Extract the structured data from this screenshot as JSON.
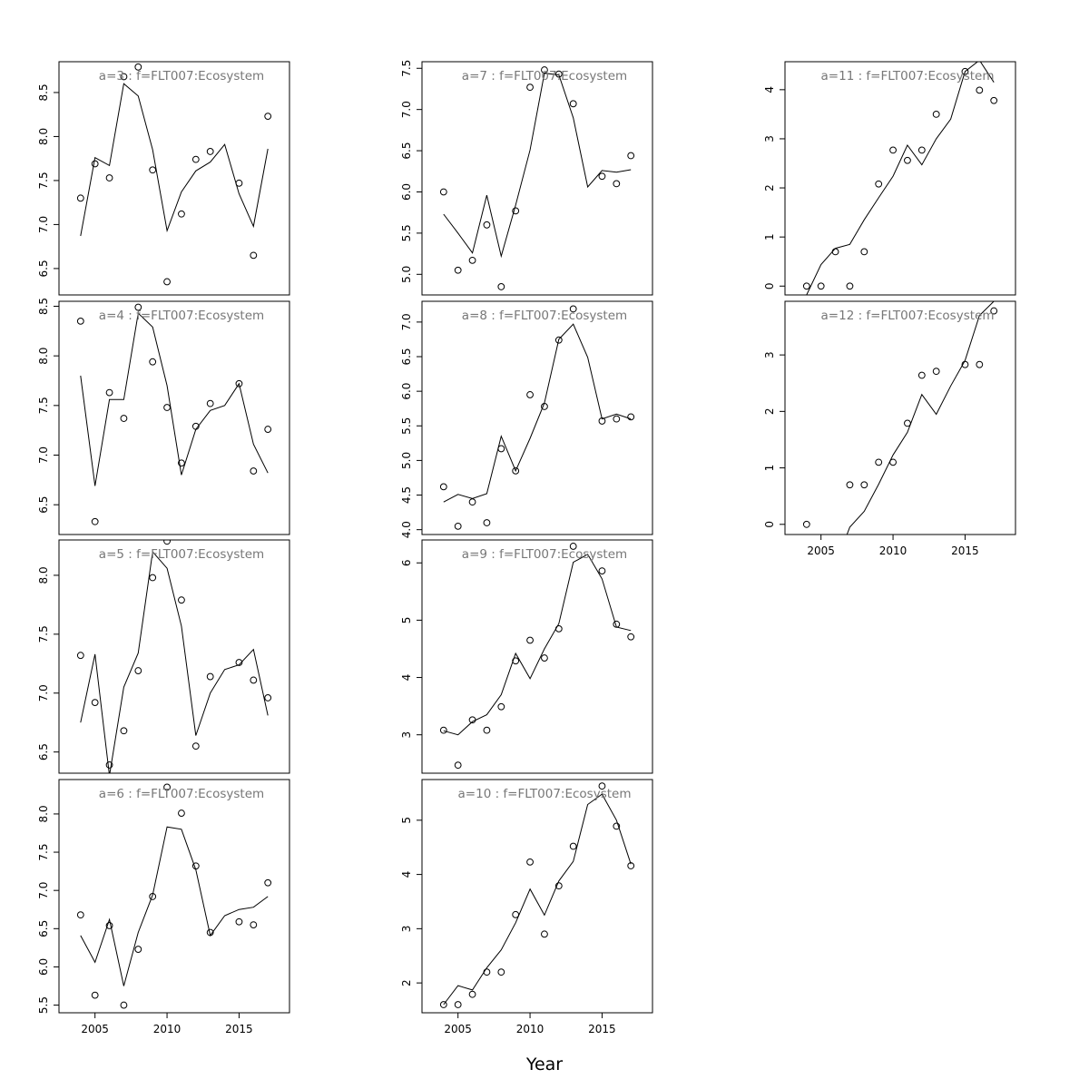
{
  "figure": {
    "xlabel": "Year",
    "x_ticks": [
      2005,
      2010,
      2015
    ]
  },
  "chart_data": [
    {
      "type": "scatter",
      "title": "a=3 : f=FLT007:Ecosystem",
      "xlim": [
        2002.5,
        2018.5
      ],
      "ylim": [
        6.2,
        8.85
      ],
      "yticks": [
        6.5,
        7.0,
        7.5,
        8.0,
        8.5
      ],
      "ytick_labels": [
        "6.5",
        "7.0",
        "7.5",
        "8.0",
        "8.5"
      ],
      "show_xaxis": false,
      "series": [
        {
          "kind": "points",
          "x": [
            2004,
            2005,
            2006,
            2007,
            2008,
            2009,
            2010,
            2011,
            2012,
            2013,
            2015,
            2016,
            2017
          ],
          "y": [
            7.3,
            7.69,
            7.53,
            8.68,
            8.79,
            7.62,
            6.35,
            7.12,
            7.74,
            7.83,
            7.47,
            6.65,
            8.23
          ]
        },
        {
          "kind": "line",
          "x": [
            2004,
            2005,
            2006,
            2007,
            2008,
            2009,
            2010,
            2011,
            2012,
            2013,
            2014,
            2015,
            2016,
            2017
          ],
          "y": [
            6.87,
            7.76,
            7.67,
            8.6,
            8.46,
            7.85,
            6.93,
            7.37,
            7.61,
            7.71,
            7.91,
            7.35,
            6.98,
            7.86
          ]
        }
      ]
    },
    {
      "type": "scatter",
      "title": "a=4 : f=FLT007:Ecosystem",
      "xlim": [
        2002.5,
        2018.5
      ],
      "ylim": [
        6.2,
        8.55
      ],
      "yticks": [
        6.5,
        7.0,
        7.5,
        8.0,
        8.5
      ],
      "ytick_labels": [
        "6.5",
        "7.0",
        "7.5",
        "8.0",
        "8.5"
      ],
      "show_xaxis": false,
      "series": [
        {
          "kind": "points",
          "x": [
            2004,
            2005,
            2006,
            2007,
            2008,
            2009,
            2010,
            2011,
            2012,
            2013,
            2015,
            2016,
            2017
          ],
          "y": [
            8.35,
            6.33,
            7.63,
            7.37,
            8.49,
            7.94,
            7.48,
            6.92,
            7.29,
            7.52,
            7.72,
            6.84,
            7.26
          ]
        },
        {
          "kind": "line",
          "x": [
            2004,
            2005,
            2006,
            2007,
            2008,
            2009,
            2010,
            2011,
            2012,
            2013,
            2014,
            2015,
            2016,
            2017
          ],
          "y": [
            7.8,
            6.69,
            7.56,
            7.56,
            8.43,
            8.29,
            7.7,
            6.8,
            7.26,
            7.45,
            7.5,
            7.72,
            7.11,
            6.82
          ]
        }
      ]
    },
    {
      "type": "scatter",
      "title": "a=5 : f=FLT007:Ecosystem",
      "xlim": [
        2002.5,
        2018.5
      ],
      "ylim": [
        6.32,
        8.3
      ],
      "yticks": [
        6.5,
        7.0,
        7.5,
        8.0
      ],
      "ytick_labels": [
        "6.5",
        "7.0",
        "7.5",
        "8.0"
      ],
      "show_xaxis": false,
      "series": [
        {
          "kind": "points",
          "x": [
            2004,
            2005,
            2006,
            2007,
            2008,
            2009,
            2010,
            2011,
            2012,
            2013,
            2015,
            2016,
            2017
          ],
          "y": [
            7.32,
            6.92,
            6.39,
            6.68,
            7.19,
            7.98,
            8.29,
            7.79,
            6.55,
            7.14,
            7.26,
            7.11,
            6.96
          ]
        },
        {
          "kind": "line",
          "x": [
            2004,
            2005,
            2006,
            2007,
            2008,
            2009,
            2010,
            2011,
            2012,
            2013,
            2014,
            2015,
            2016,
            2017
          ],
          "y": [
            6.75,
            7.33,
            6.3,
            7.05,
            7.34,
            8.2,
            8.06,
            7.57,
            6.64,
            7.0,
            7.2,
            7.24,
            7.37,
            6.81
          ]
        }
      ]
    },
    {
      "type": "scatter",
      "title": "a=6 : f=FLT007:Ecosystem",
      "xlim": [
        2002.5,
        2018.5
      ],
      "ylim": [
        5.4,
        8.45
      ],
      "yticks": [
        5.5,
        6.0,
        6.5,
        7.0,
        7.5,
        8.0
      ],
      "ytick_labels": [
        "5.5",
        "6.0",
        "6.5",
        "7.0",
        "7.5",
        "8.0"
      ],
      "show_xaxis": true,
      "series": [
        {
          "kind": "points",
          "x": [
            2004,
            2005,
            2006,
            2007,
            2008,
            2009,
            2010,
            2011,
            2012,
            2013,
            2015,
            2016,
            2017
          ],
          "y": [
            6.68,
            5.63,
            6.54,
            5.5,
            6.23,
            6.92,
            8.35,
            8.01,
            7.32,
            6.45,
            6.59,
            6.55,
            7.1
          ]
        },
        {
          "kind": "line",
          "x": [
            2004,
            2005,
            2006,
            2007,
            2008,
            2009,
            2010,
            2011,
            2012,
            2013,
            2014,
            2015,
            2016,
            2017
          ],
          "y": [
            6.41,
            6.06,
            6.62,
            5.75,
            6.45,
            6.94,
            7.83,
            7.8,
            7.27,
            6.41,
            6.67,
            6.75,
            6.78,
            6.92
          ]
        }
      ]
    },
    {
      "type": "scatter",
      "title": "a=7 : f=FLT007:Ecosystem",
      "xlim": [
        2002.5,
        2018.5
      ],
      "ylim": [
        4.75,
        7.58
      ],
      "yticks": [
        5.0,
        5.5,
        6.0,
        6.5,
        7.0,
        7.5
      ],
      "ytick_labels": [
        "5.0",
        "5.5",
        "6.0",
        "6.5",
        "7.0",
        "7.5"
      ],
      "show_xaxis": false,
      "series": [
        {
          "kind": "points",
          "x": [
            2004,
            2005,
            2006,
            2007,
            2008,
            2009,
            2010,
            2011,
            2012,
            2013,
            2015,
            2016,
            2017
          ],
          "y": [
            6.0,
            5.05,
            5.17,
            5.6,
            4.85,
            5.77,
            7.27,
            7.48,
            7.43,
            7.07,
            6.19,
            6.1,
            6.44
          ]
        },
        {
          "kind": "line",
          "x": [
            2004,
            2005,
            2006,
            2007,
            2008,
            2009,
            2010,
            2011,
            2012,
            2013,
            2014,
            2015,
            2016,
            2017
          ],
          "y": [
            5.73,
            5.5,
            5.26,
            5.96,
            5.22,
            5.84,
            6.51,
            7.44,
            7.42,
            6.9,
            6.06,
            6.26,
            6.24,
            6.27
          ]
        }
      ]
    },
    {
      "type": "scatter",
      "title": "a=8 : f=FLT007:Ecosystem",
      "xlim": [
        2002.5,
        2018.5
      ],
      "ylim": [
        3.93,
        7.3
      ],
      "yticks": [
        4.0,
        4.5,
        5.0,
        5.5,
        6.0,
        6.5,
        7.0
      ],
      "ytick_labels": [
        "4.0",
        "4.5",
        "5.0",
        "5.5",
        "6.0",
        "6.5",
        "7.0"
      ],
      "show_xaxis": false,
      "series": [
        {
          "kind": "points",
          "x": [
            2004,
            2005,
            2006,
            2007,
            2008,
            2009,
            2010,
            2011,
            2012,
            2013,
            2015,
            2016,
            2017
          ],
          "y": [
            4.62,
            4.05,
            4.4,
            4.1,
            5.17,
            4.85,
            5.95,
            5.78,
            6.74,
            7.19,
            5.57,
            5.6,
            5.63
          ]
        },
        {
          "kind": "line",
          "x": [
            2004,
            2005,
            2006,
            2007,
            2008,
            2009,
            2010,
            2011,
            2012,
            2013,
            2014,
            2015,
            2016,
            2017
          ],
          "y": [
            4.4,
            4.51,
            4.45,
            4.52,
            5.35,
            4.85,
            5.32,
            5.83,
            6.75,
            6.97,
            6.49,
            5.6,
            5.67,
            5.6
          ]
        }
      ]
    },
    {
      "type": "scatter",
      "title": "a=9 : f=FLT007:Ecosystem",
      "xlim": [
        2002.5,
        2018.5
      ],
      "ylim": [
        2.33,
        6.4
      ],
      "yticks": [
        3,
        4,
        5,
        6
      ],
      "ytick_labels": [
        "3",
        "4",
        "5",
        "6"
      ],
      "show_xaxis": false,
      "series": [
        {
          "kind": "points",
          "x": [
            2004,
            2005,
            2006,
            2007,
            2008,
            2009,
            2010,
            2011,
            2012,
            2013,
            2015,
            2016,
            2017
          ],
          "y": [
            3.08,
            2.47,
            3.26,
            3.08,
            3.49,
            4.29,
            4.65,
            4.34,
            4.85,
            6.29,
            5.86,
            4.93,
            4.71
          ]
        },
        {
          "kind": "line",
          "x": [
            2004,
            2005,
            2006,
            2007,
            2008,
            2009,
            2010,
            2011,
            2012,
            2013,
            2014,
            2015,
            2016,
            2017
          ],
          "y": [
            3.07,
            3.0,
            3.23,
            3.35,
            3.7,
            4.42,
            3.98,
            4.5,
            4.94,
            6.01,
            6.15,
            5.72,
            4.88,
            4.82
          ]
        }
      ]
    },
    {
      "type": "scatter",
      "title": "a=10 : f=FLT007:Ecosystem",
      "xlim": [
        2002.5,
        2018.5
      ],
      "ylim": [
        1.45,
        5.75
      ],
      "yticks": [
        2,
        3,
        4,
        5
      ],
      "ytick_labels": [
        "2",
        "3",
        "4",
        "5"
      ],
      "show_xaxis": true,
      "series": [
        {
          "kind": "points",
          "x": [
            2004,
            2005,
            2006,
            2007,
            2008,
            2009,
            2010,
            2011,
            2012,
            2013,
            2015,
            2016,
            2017
          ],
          "y": [
            1.6,
            1.6,
            1.79,
            2.2,
            2.2,
            3.26,
            4.23,
            2.9,
            3.79,
            4.52,
            5.63,
            4.89,
            4.16
          ]
        },
        {
          "kind": "line",
          "x": [
            2004,
            2005,
            2006,
            2007,
            2008,
            2009,
            2010,
            2011,
            2012,
            2013,
            2014,
            2015,
            2016,
            2017
          ],
          "y": [
            1.6,
            1.95,
            1.87,
            2.28,
            2.61,
            3.11,
            3.73,
            3.25,
            3.88,
            4.24,
            5.29,
            5.48,
            5.0,
            4.19
          ]
        }
      ]
    },
    {
      "type": "scatter",
      "title": "a=11 : f=FLT007:Ecosystem",
      "xlim": [
        2002.5,
        2018.5
      ],
      "ylim": [
        -0.18,
        4.57
      ],
      "yticks": [
        0,
        1,
        2,
        3,
        4
      ],
      "ytick_labels": [
        "0",
        "1",
        "2",
        "3",
        "4"
      ],
      "show_xaxis": false,
      "series": [
        {
          "kind": "points",
          "x": [
            2004,
            2005,
            2006,
            2007,
            2008,
            2009,
            2010,
            2011,
            2012,
            2013,
            2015,
            2016,
            2017
          ],
          "y": [
            0.0,
            0.0,
            0.7,
            0.0,
            0.7,
            2.08,
            2.77,
            2.56,
            2.77,
            3.5,
            4.37,
            3.99,
            3.78
          ]
        },
        {
          "kind": "line",
          "x": [
            2004,
            2005,
            2006,
            2007,
            2008,
            2009,
            2010,
            2011,
            2012,
            2013,
            2014,
            2015,
            2016,
            2017
          ],
          "y": [
            -0.18,
            0.44,
            0.77,
            0.85,
            1.35,
            1.8,
            2.24,
            2.87,
            2.47,
            3.0,
            3.4,
            4.37,
            4.6,
            4.15
          ]
        }
      ]
    },
    {
      "type": "scatter",
      "title": "a=12 : f=FLT007:Ecosystem",
      "xlim": [
        2002.5,
        2018.5
      ],
      "ylim": [
        -0.18,
        3.95
      ],
      "yticks": [
        0,
        1,
        2,
        3
      ],
      "ytick_labels": [
        "0",
        "1",
        "2",
        "3"
      ],
      "show_xaxis": true,
      "series": [
        {
          "kind": "points",
          "x": [
            2004,
            2007,
            2008,
            2009,
            2010,
            2011,
            2012,
            2013,
            2015,
            2016,
            2017
          ],
          "y": [
            0.0,
            0.7,
            0.7,
            1.1,
            1.1,
            1.79,
            2.64,
            2.71,
            2.83,
            2.83,
            3.78
          ]
        },
        {
          "kind": "line",
          "x": [
            2006.8,
            2007,
            2008,
            2009,
            2010,
            2011,
            2012,
            2013,
            2014,
            2015,
            2016,
            2017
          ],
          "y": [
            -0.18,
            -0.05,
            0.23,
            0.71,
            1.23,
            1.63,
            2.3,
            1.95,
            2.45,
            2.9,
            3.7,
            3.95
          ]
        }
      ]
    }
  ]
}
